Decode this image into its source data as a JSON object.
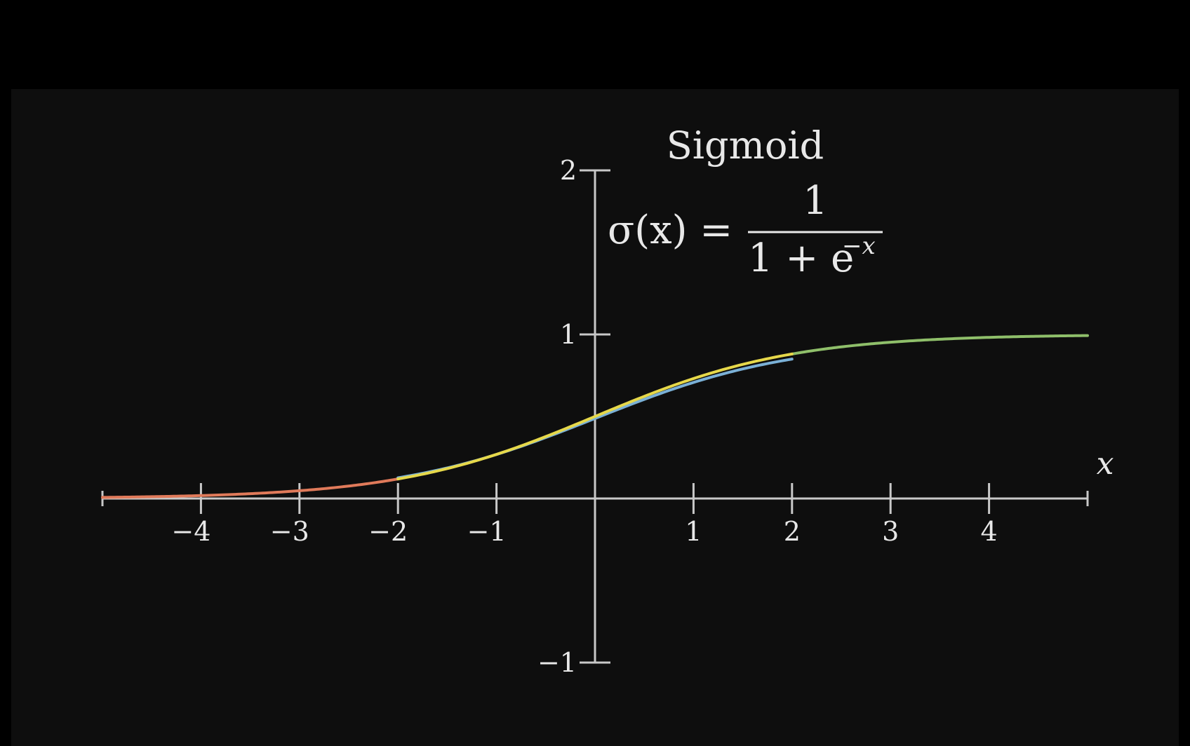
{
  "chart_data": {
    "type": "line",
    "title": "Sigmoid",
    "formula": {
      "lhs": "σ(x) =",
      "numerator": "1",
      "denominator_base": "1 + e",
      "denominator_exponent": "−x"
    },
    "xlabel": "x",
    "ylabel": "",
    "xlim": [
      -5,
      5
    ],
    "ylim": [
      -1,
      2
    ],
    "x_ticks": [
      -4,
      -3,
      -2,
      -1,
      1,
      2,
      3,
      4
    ],
    "x_tick_labels": [
      "−4",
      "−3",
      "−2",
      "−1",
      "1",
      "2",
      "3",
      "4"
    ],
    "y_ticks": [
      2,
      1,
      -1
    ],
    "y_tick_labels": [
      "2",
      "1",
      "−1"
    ],
    "grid": false,
    "series": [
      {
        "function": "sigmoid",
        "x_range": [
          -5,
          -2
        ],
        "color": "#e07a5a"
      },
      {
        "function": "sigmoid",
        "x_range": [
          2,
          5
        ],
        "color": "#8fbf6a"
      },
      {
        "function": "sigmoid_approx",
        "x_range": [
          -2,
          2
        ],
        "color": "#7ab0d6"
      },
      {
        "function": "sigmoid",
        "x_range": [
          -2,
          2
        ],
        "color": "#e6d84a"
      }
    ]
  },
  "colors": {
    "background": "#0e0e0e",
    "frame": "#000000",
    "axis": "#c8c8c8",
    "text": "#e8e8e8"
  }
}
